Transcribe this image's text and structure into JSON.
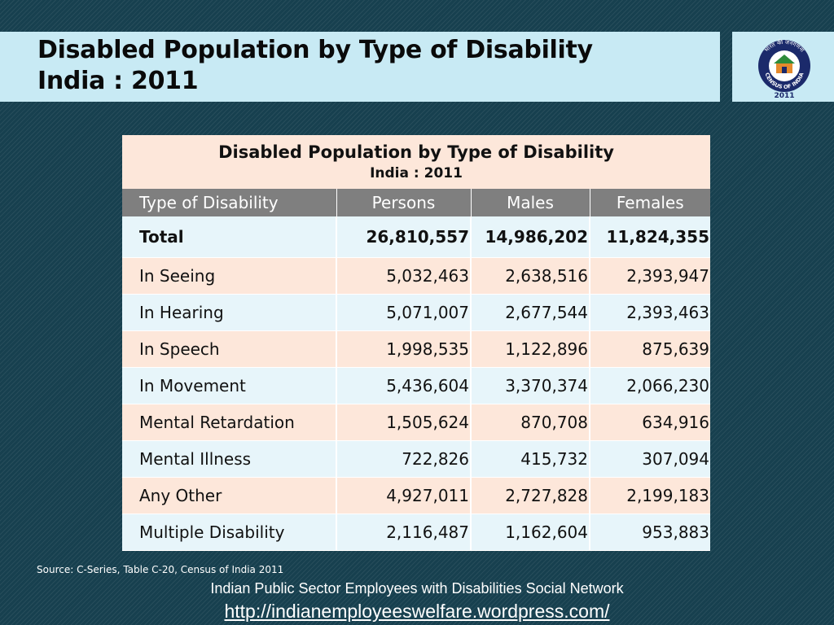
{
  "slide": {
    "title_line1": "Disabled Population by Type of Disability",
    "title_line2": "India : 2011"
  },
  "logo": {
    "top_text": "भारत की जनगणना",
    "bottom_text": "CENSUS OF INDIA",
    "year": "2011"
  },
  "table": {
    "caption_title": "Disabled Population by Type of Disability",
    "caption_subtitle": "India : 2011",
    "headers": [
      "Type of Disability",
      "Persons",
      "Males",
      "Females"
    ],
    "rows": [
      [
        "Total",
        "26,810,557",
        "14,986,202",
        "11,824,355"
      ],
      [
        "In Seeing",
        "5,032,463",
        "2,638,516",
        "2,393,947"
      ],
      [
        "In Hearing",
        "5,071,007",
        "2,677,544",
        "2,393,463"
      ],
      [
        "In Speech",
        "1,998,535",
        "1,122,896",
        "875,639"
      ],
      [
        "In Movement",
        "5,436,604",
        "3,370,374",
        "2,066,230"
      ],
      [
        "Mental Retardation",
        "1,505,624",
        "870,708",
        "634,916"
      ],
      [
        "Mental Illness",
        "722,826",
        "415,732",
        "307,094"
      ],
      [
        "Any Other",
        "4,927,011",
        "2,727,828",
        "2,199,183"
      ],
      [
        "Multiple Disability",
        "2,116,487",
        "1,162,604",
        "953,883"
      ]
    ]
  },
  "footer": {
    "source": "Source: C-Series, Table C-20, Census of India 2011",
    "network": "Indian Public Sector Employees with Disabilities Social Network",
    "link": "http://indianemployeeswelfare.wordpress.com/"
  },
  "colors": {
    "background": "#17404f",
    "title_bar": "#c8eaf4",
    "header_row": "#7f7f7f",
    "row_peach": "#fde7da",
    "row_blue": "#e7f5fa",
    "logo_navy": "#1b2a6b"
  }
}
